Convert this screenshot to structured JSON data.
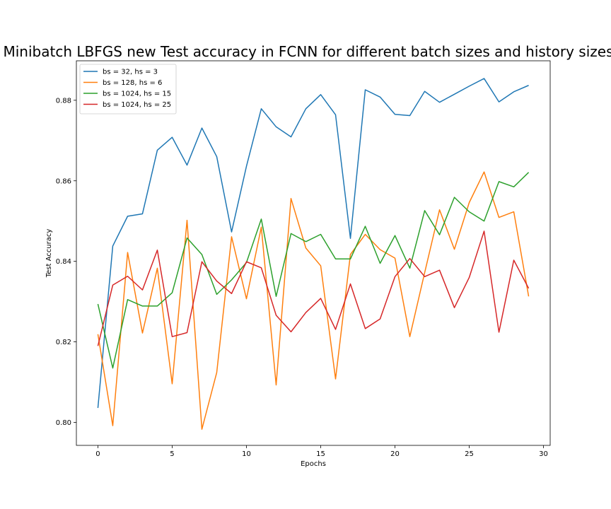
{
  "chart_data": {
    "type": "line",
    "title": "Minibatch LBFGS new Test accuracy in FCNN for different batch sizes and history sizes",
    "xlabel": "Epochs",
    "ylabel": "Test Accuracy",
    "xlim": [
      -1.45,
      30.45
    ],
    "ylim": [
      0.7943,
      0.8898
    ],
    "xticks": [
      0,
      5,
      10,
      15,
      20,
      25,
      30
    ],
    "yticks": [
      0.8,
      0.82,
      0.84,
      0.86,
      0.88
    ],
    "ytick_labels": [
      "0.80",
      "0.82",
      "0.84",
      "0.86",
      "0.88"
    ],
    "grid": false,
    "legend_position": "top-left",
    "x": [
      0,
      1,
      2,
      3,
      4,
      5,
      6,
      7,
      8,
      9,
      10,
      11,
      12,
      13,
      14,
      15,
      16,
      17,
      18,
      19,
      20,
      21,
      22,
      23,
      24,
      25,
      26,
      27,
      28,
      29
    ],
    "series": [
      {
        "name": "bs = 32, hs = 3",
        "color": "#1f77b4",
        "values": [
          0.8036,
          0.8438,
          0.8512,
          0.8518,
          0.8676,
          0.8708,
          0.8639,
          0.8731,
          0.866,
          0.8473,
          0.8636,
          0.8779,
          0.8734,
          0.8709,
          0.8779,
          0.8814,
          0.8764,
          0.8457,
          0.8826,
          0.8808,
          0.8765,
          0.8762,
          0.8822,
          0.8795,
          0.8815,
          0.8835,
          0.8854,
          0.8796,
          0.8821,
          0.8837
        ]
      },
      {
        "name": "bs = 128, hs = 6",
        "color": "#ff7f0e",
        "values": [
          0.8219,
          0.7992,
          0.8422,
          0.8222,
          0.8383,
          0.8096,
          0.8502,
          0.7983,
          0.8124,
          0.8461,
          0.8307,
          0.8485,
          0.8093,
          0.8556,
          0.8433,
          0.8389,
          0.8108,
          0.8417,
          0.8467,
          0.8429,
          0.8408,
          0.8213,
          0.8372,
          0.8528,
          0.843,
          0.8546,
          0.8622,
          0.8509,
          0.8523,
          0.8313
        ]
      },
      {
        "name": "bs = 1024, hs = 15",
        "color": "#2ca02c",
        "values": [
          0.8294,
          0.8135,
          0.8305,
          0.8289,
          0.8289,
          0.8322,
          0.8458,
          0.8417,
          0.8318,
          0.8354,
          0.8397,
          0.8505,
          0.8313,
          0.8469,
          0.8449,
          0.8467,
          0.8406,
          0.8406,
          0.8487,
          0.8395,
          0.8464,
          0.8383,
          0.8526,
          0.8466,
          0.8559,
          0.8523,
          0.85,
          0.8598,
          0.8585,
          0.8621
        ]
      },
      {
        "name": "bs = 1024, hs = 25",
        "color": "#d62728",
        "values": [
          0.819,
          0.8341,
          0.8363,
          0.8329,
          0.8428,
          0.8213,
          0.8223,
          0.8399,
          0.8351,
          0.832,
          0.8399,
          0.8384,
          0.8266,
          0.8225,
          0.8273,
          0.8308,
          0.8231,
          0.8344,
          0.8233,
          0.8257,
          0.8362,
          0.8407,
          0.8362,
          0.8378,
          0.8285,
          0.836,
          0.8475,
          0.8224,
          0.8403,
          0.8333
        ]
      }
    ]
  }
}
